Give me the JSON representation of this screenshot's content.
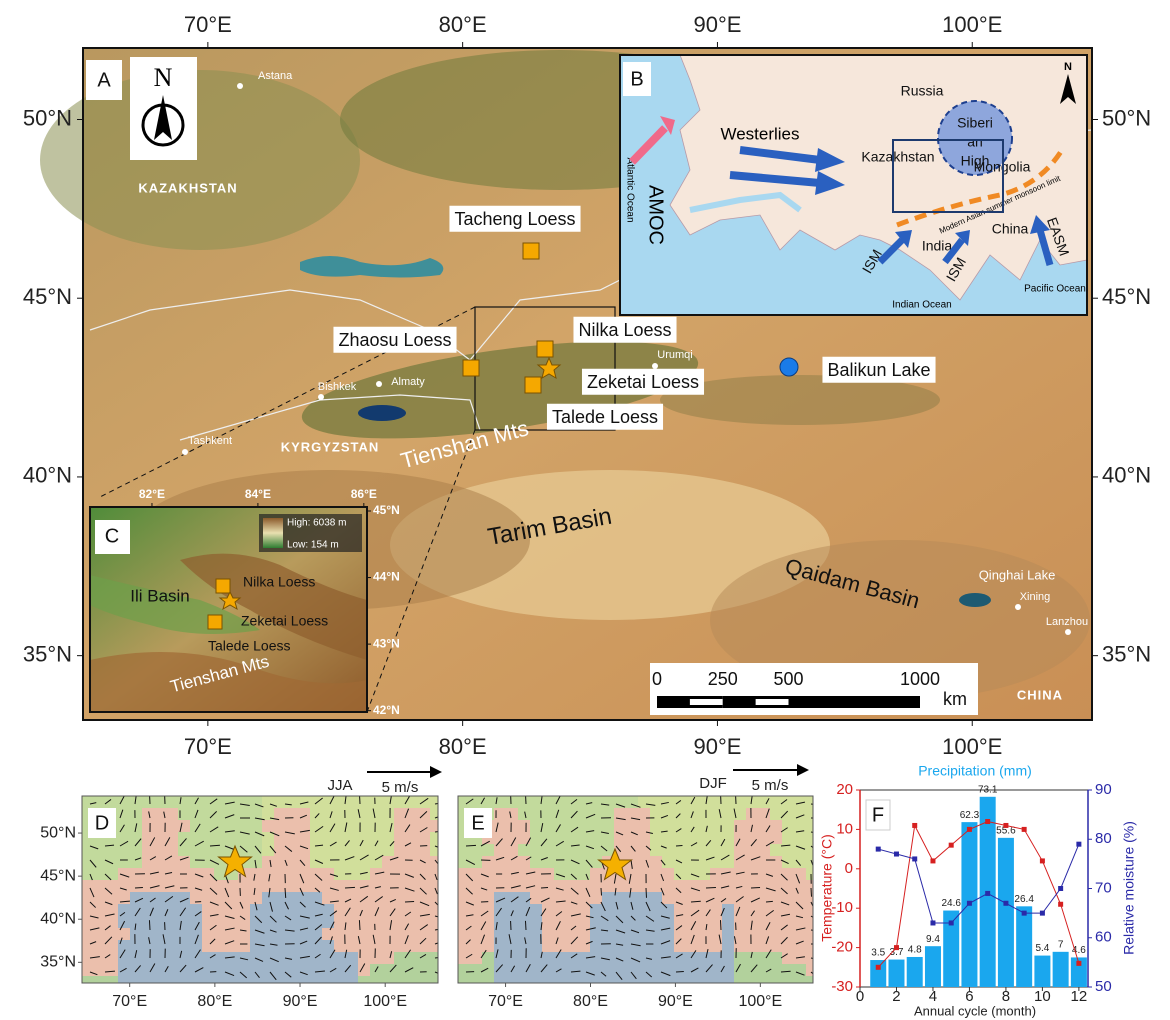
{
  "panel_a": {
    "label": "A",
    "north": "N",
    "xlim": [
      65.1,
      104.7
    ],
    "ylim": [
      33.2,
      52.0
    ],
    "lon_ticks": [
      {
        "value": 70,
        "label": "70°E"
      },
      {
        "value": 80,
        "label": "80°E"
      },
      {
        "value": 90,
        "label": "90°E"
      },
      {
        "value": 100,
        "label": "100°E"
      }
    ],
    "lat_ticks": [
      {
        "value": 50,
        "label": "50°N"
      },
      {
        "value": 45,
        "label": "45°N"
      },
      {
        "value": 40,
        "label": "40°N"
      },
      {
        "value": 35,
        "label": "35°N"
      }
    ],
    "places": [
      "Astana",
      "KAZAKHSTAN",
      "Urumqi",
      "Bishkek",
      "Almaty",
      "Tashkent",
      "KYRGYZSTAN",
      "Qinghai Lake",
      "Xining",
      "Lanzhou",
      "CHINA"
    ],
    "sites": [
      "Tacheng Loess",
      "Zhaosu Loess",
      "Nilka Loess",
      "Zeketai Loess",
      "Talede Loess",
      "Balikun Lake"
    ],
    "regions": [
      "Tienshan Mts",
      "Tarim Basin",
      "Qaidam Basin"
    ],
    "scale_bar": {
      "ticks": [
        0,
        250,
        500,
        1000
      ],
      "unit": "km"
    }
  },
  "panel_b": {
    "label": "B",
    "north": "N",
    "russia": "Russia",
    "siberian_high": [
      "Siberi",
      "an",
      "High"
    ],
    "westerlies": "Westerlies",
    "kazakhstan": "Kazakhstan",
    "mongolia": "Mongolia",
    "amoc": "AMOC",
    "atlantic": "Atlantic Ocean",
    "india": "India",
    "china": "China",
    "ism": "ISM",
    "easm": "EASM",
    "indian_ocean": "Indian Ocean",
    "pacific_ocean": "Pacific Ocean",
    "monsoon_limit": "Modern Asian summer monsoon limit"
  },
  "panel_c": {
    "label": "C",
    "xlim": [
      80.83,
      86.06
    ],
    "ylim": [
      41.98,
      45.06
    ],
    "lon_ticks": [
      {
        "value": 82,
        "label": "82°E"
      },
      {
        "value": 84,
        "label": "84°E"
      },
      {
        "value": 86,
        "label": "86°E"
      }
    ],
    "lat_ticks": [
      {
        "value": 45,
        "label": "45°N"
      },
      {
        "value": 44,
        "label": "44°N"
      },
      {
        "value": 43,
        "label": "43°N"
      },
      {
        "value": 42,
        "label": "42°N"
      }
    ],
    "legend_high": "High: 6038 m",
    "legend_low": "Low: 154 m",
    "texts": [
      "Ili Basin",
      "Nilka Loess",
      "Zeketai Loess",
      "Talede Loess",
      "Tienshan Mts"
    ]
  },
  "panel_d": {
    "label": "D",
    "season": "JJA",
    "scale": "5 m/s",
    "xlim": [
      64.4,
      106.2
    ],
    "ylim": [
      32.6,
      54.3
    ],
    "lon_ticks": [
      {
        "value": 70,
        "label": "70°E"
      },
      {
        "value": 80,
        "label": "80°E"
      },
      {
        "value": 90,
        "label": "90°E"
      },
      {
        "value": 100,
        "label": "100°E"
      }
    ],
    "lat_ticks": [
      {
        "value": 50,
        "label": "50°N"
      },
      {
        "value": 45,
        "label": "45°N"
      },
      {
        "value": 40,
        "label": "40°N"
      },
      {
        "value": 35,
        "label": "35°N"
      }
    ]
  },
  "panel_e": {
    "label": "E",
    "season": "DJF",
    "scale": "5 m/s",
    "xlim": [
      64.4,
      106.2
    ],
    "ylim": [
      32.6,
      54.3
    ],
    "lon_ticks": [
      {
        "value": 70,
        "label": "70°E"
      },
      {
        "value": 80,
        "label": "80°E"
      },
      {
        "value": 90,
        "label": "90°E"
      },
      {
        "value": 100,
        "label": "100°E"
      }
    ]
  },
  "chart_data": {
    "type": "combo",
    "label": "F",
    "title": "Precipitation (mm)",
    "xlabel": "Annual cycle (month)",
    "ylabel": "Temperature (°C)",
    "y2label": "Relative moisture (%)",
    "x": [
      1,
      2,
      3,
      4,
      5,
      6,
      7,
      8,
      9,
      10,
      11,
      12
    ],
    "xlim": [
      0,
      12.5
    ],
    "xticks": [
      0,
      2,
      4,
      6,
      8,
      10,
      12
    ],
    "ylim": [
      -30,
      20
    ],
    "yticks": [
      -30,
      -20,
      -10,
      0,
      10,
      20
    ],
    "y2lim": [
      50,
      90
    ],
    "y2ticks": [
      50,
      60,
      70,
      80,
      90
    ],
    "y3lim": [
      -8,
      76
    ],
    "series": [
      {
        "type": "bar",
        "axis": "y3",
        "color": "#1aa7ee",
        "values": [
          3.5,
          3.7,
          4.8,
          9.4,
          24.6,
          62.3,
          73.1,
          55.6,
          26.4,
          5.4,
          7,
          4.6
        ]
      },
      {
        "type": "line",
        "color": "#d62020",
        "values": [
          -25,
          -20,
          11,
          2,
          6,
          10,
          12,
          11,
          10,
          2,
          -9,
          -24
        ]
      },
      {
        "type": "line",
        "axis": "y2",
        "color": "#2a2aa8",
        "values": [
          78,
          77,
          76,
          63,
          63,
          67,
          69,
          67,
          65,
          65,
          70,
          79
        ]
      }
    ]
  }
}
